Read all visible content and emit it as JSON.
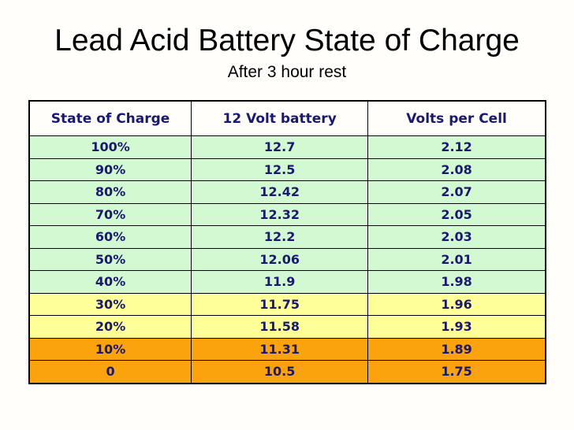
{
  "slide": {
    "title": "Lead Acid Battery State of Charge",
    "subtitle": "After 3 hour rest"
  },
  "colors": {
    "title_text": "#000000",
    "table_text": "#191970",
    "border": "#000000",
    "header_background": "#fffefb",
    "green": "#d3f9d3",
    "yellow": "#ffff99",
    "orange": "#faa30c"
  },
  "table": {
    "columns": [
      "State of Charge",
      "12 Volt battery",
      "Volts per Cell"
    ],
    "rows": [
      {
        "state_of_charge": "100%",
        "twelve_volt_battery": "12.7",
        "volts_per_cell": "2.12",
        "band": "green"
      },
      {
        "state_of_charge": "90%",
        "twelve_volt_battery": "12.5",
        "volts_per_cell": "2.08",
        "band": "green"
      },
      {
        "state_of_charge": "80%",
        "twelve_volt_battery": "12.42",
        "volts_per_cell": "2.07",
        "band": "green"
      },
      {
        "state_of_charge": "70%",
        "twelve_volt_battery": "12.32",
        "volts_per_cell": "2.05",
        "band": "green"
      },
      {
        "state_of_charge": "60%",
        "twelve_volt_battery": "12.2",
        "volts_per_cell": "2.03",
        "band": "green"
      },
      {
        "state_of_charge": "50%",
        "twelve_volt_battery": "12.06",
        "volts_per_cell": "2.01",
        "band": "green"
      },
      {
        "state_of_charge": "40%",
        "twelve_volt_battery": "11.9",
        "volts_per_cell": "1.98",
        "band": "green"
      },
      {
        "state_of_charge": "30%",
        "twelve_volt_battery": "11.75",
        "volts_per_cell": "1.96",
        "band": "yellow"
      },
      {
        "state_of_charge": "20%",
        "twelve_volt_battery": "11.58",
        "volts_per_cell": "1.93",
        "band": "yellow"
      },
      {
        "state_of_charge": "10%",
        "twelve_volt_battery": "11.31",
        "volts_per_cell": "1.89",
        "band": "orange"
      },
      {
        "state_of_charge": "0",
        "twelve_volt_battery": "10.5",
        "volts_per_cell": "1.75",
        "band": "orange"
      }
    ]
  }
}
